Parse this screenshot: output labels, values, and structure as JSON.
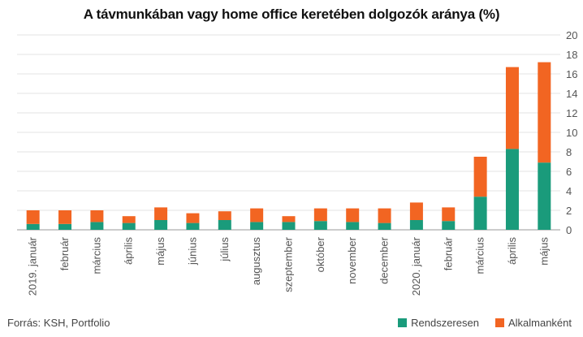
{
  "chart_data": {
    "type": "bar",
    "stacked": true,
    "title": "A távmunkában vagy home office keretében dolgozók aránya (%)",
    "categories": [
      "2019. január",
      "február",
      "március",
      "április",
      "május",
      "június",
      "július",
      "augusztus",
      "szeptember",
      "október",
      "november",
      "december",
      "2020. január",
      "február",
      "március",
      "április",
      "május"
    ],
    "series": [
      {
        "name": "Rendszeresen",
        "color": "#1a9b7b",
        "values": [
          0.6,
          0.6,
          0.8,
          0.7,
          1.0,
          0.7,
          1.0,
          0.8,
          0.8,
          0.9,
          0.8,
          0.7,
          1.0,
          0.9,
          3.4,
          8.3,
          6.9
        ]
      },
      {
        "name": "Alkalmanként",
        "color": "#f26522",
        "values": [
          1.4,
          1.4,
          1.2,
          0.7,
          1.3,
          1.0,
          0.9,
          1.4,
          0.6,
          1.3,
          1.4,
          1.5,
          1.8,
          1.4,
          4.1,
          8.4,
          10.3
        ]
      }
    ],
    "ylim": [
      0,
      20
    ],
    "yticks": [
      0,
      2,
      4,
      6,
      8,
      10,
      12,
      14,
      16,
      18,
      20
    ],
    "grid": true,
    "y_axis_side": "right",
    "legend_position": "bottom-right"
  },
  "footer": {
    "source": "Forrás: KSH, Portfolio"
  }
}
